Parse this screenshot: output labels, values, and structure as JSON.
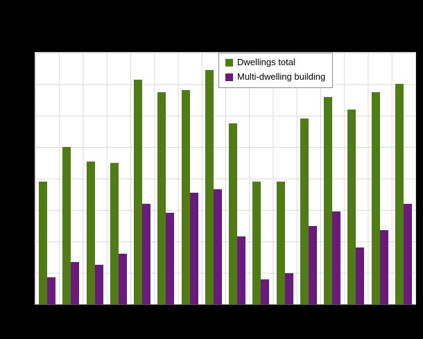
{
  "chart": {
    "outer_background": "#000000",
    "plot_background": "#ffffff",
    "grid_color": "#d9d9d9",
    "axis_line_color": "#4d4d4d",
    "legend_border_color": "#8c8c8c"
  },
  "legend": {
    "items": [
      {
        "label": "Dwellings total",
        "color": "#4f7d13"
      },
      {
        "label": "Multi-dwelling building",
        "color": "#6a1a7c"
      }
    ]
  },
  "chart_data": {
    "type": "bar",
    "title": "",
    "xlabel": "",
    "ylabel": "",
    "n_groups": 16,
    "series": [
      {
        "name": "Dwellings total",
        "color": "#4f7d13",
        "values": [
          3900,
          5000,
          4550,
          4500,
          7150,
          6750,
          6800,
          7450,
          5750,
          3900,
          3900,
          5900,
          6600,
          6200,
          6750,
          7000
        ]
      },
      {
        "name": "Multi-dwelling building",
        "color": "#6a1a7c",
        "values": [
          850,
          1350,
          1250,
          1600,
          3200,
          2900,
          3550,
          3650,
          2150,
          800,
          1000,
          2500,
          2950,
          1800,
          2350,
          3200
        ]
      }
    ],
    "ylim": [
      0,
      8000
    ],
    "y_divisions": 8,
    "x_divisions": 16,
    "grid": true,
    "legend_position": "inside-top-center",
    "xticklabels": [],
    "yticklabels": []
  }
}
